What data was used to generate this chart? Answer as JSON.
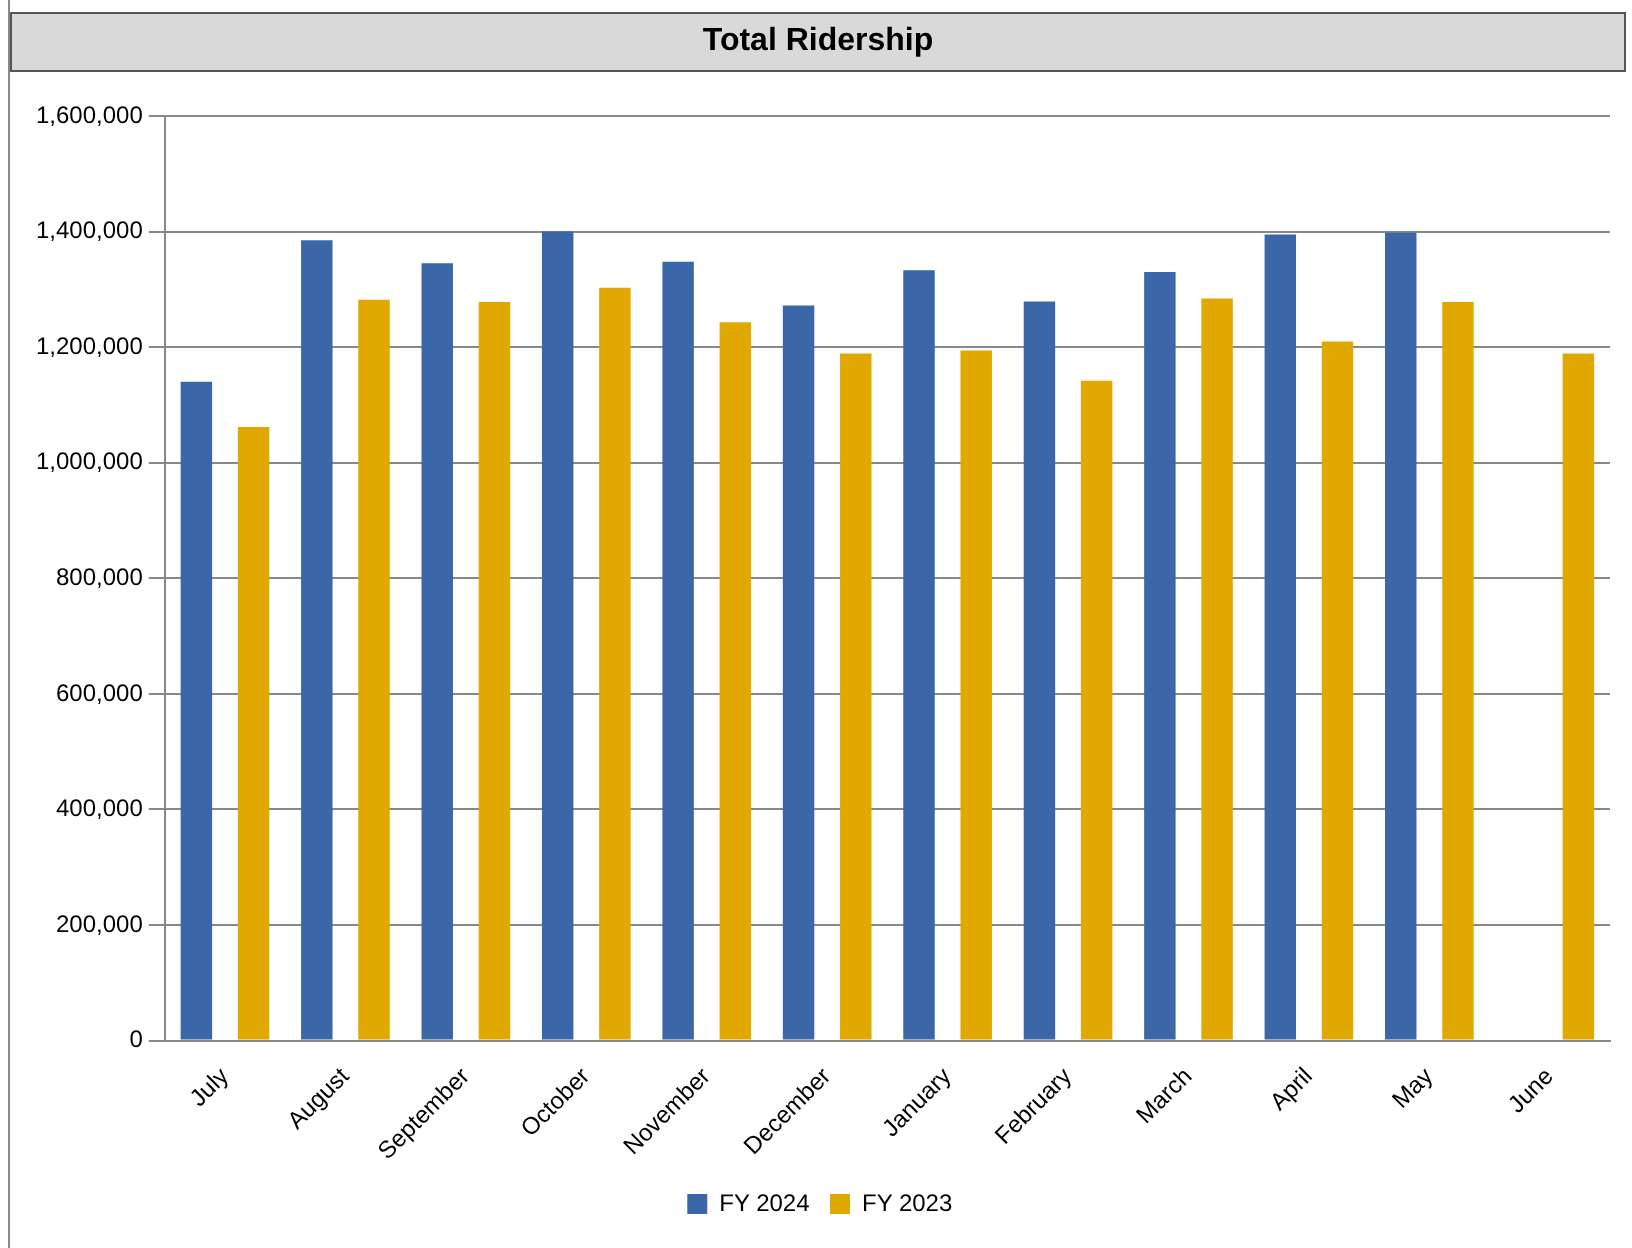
{
  "chart_data": {
    "type": "bar",
    "title": "Total Ridership",
    "categories": [
      "July",
      "August",
      "September",
      "October",
      "November",
      "December",
      "January",
      "February",
      "March",
      "April",
      "May",
      "June"
    ],
    "series": [
      {
        "name": "FY 2024",
        "color": "#3b67a8",
        "values": [
          1140000,
          1385000,
          1345000,
          1400000,
          1348000,
          1272000,
          1333000,
          1279000,
          1330000,
          1395000,
          1398000,
          null
        ]
      },
      {
        "name": "FY 2023",
        "color": "#e0a800",
        "values": [
          1062000,
          1282000,
          1278000,
          1303000,
          1243000,
          1189000,
          1194000,
          1142000,
          1284000,
          1210000,
          1278000,
          1189000
        ]
      }
    ],
    "ylim": [
      0,
      1600000
    ],
    "yticks": [
      0,
      {
        "value": 200000,
        "label": "200,000"
      },
      {
        "value": 400000,
        "label": "400,000"
      },
      {
        "value": 600000,
        "label": "600,000"
      },
      {
        "value": 800000,
        "label": "800,000"
      },
      {
        "value": 1000000,
        "label": "1,000,000"
      },
      {
        "value": 1200000,
        "label": "1,200,000"
      },
      {
        "value": 1400000,
        "label": "1,400,000"
      },
      {
        "value": 1600000,
        "label": "1,600,000"
      }
    ],
    "grid": "y",
    "legend": "bottom"
  }
}
